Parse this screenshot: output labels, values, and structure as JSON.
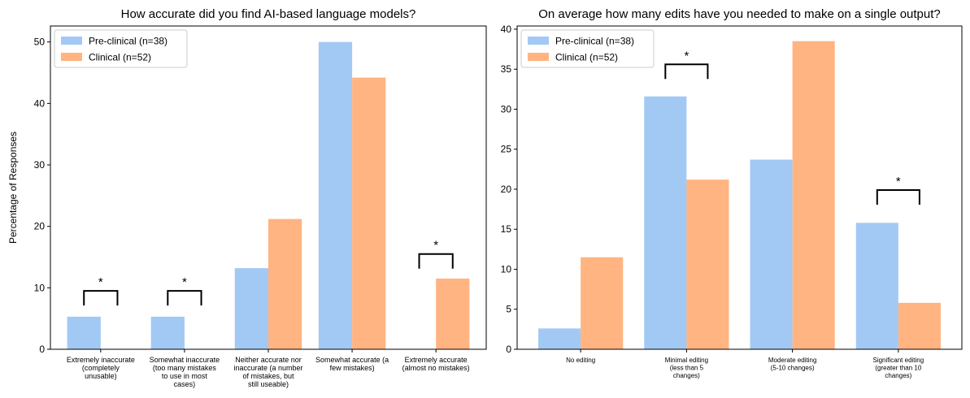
{
  "colors": {
    "preclinical": "#a1c9f4",
    "clinical": "#ffb482"
  },
  "chart_data": [
    {
      "type": "bar",
      "title": "How accurate did you find AI-based language models?",
      "ylabel": "Percentage of Responses",
      "ylim": [
        0,
        52.6
      ],
      "yticks": [
        0,
        10,
        20,
        30,
        40,
        50
      ],
      "categories": [
        "Extremely inaccurate (completely unusable)",
        "Somewhat inaccurate (too many mistakes to use in most cases)",
        "Neither accurate nor inaccurate (a number of mistakes, but still useable)",
        "Somewhat accurate (a few mistakes)",
        "Extremely accurate (almost no mistakes)"
      ],
      "category_lines": [
        [
          "Extremely inaccurate",
          "(completely",
          "unusable)"
        ],
        [
          "Somewhat inaccurate",
          "(too many mistakes",
          "to use in most",
          "cases)"
        ],
        [
          "Neither accurate nor",
          "inaccurate (a number",
          "of mistakes, but",
          "still useable)"
        ],
        [
          "Somewhat accurate (a",
          "few mistakes)"
        ],
        [
          "Extremely accurate",
          "(almost no mistakes)"
        ]
      ],
      "series": [
        {
          "name": "Pre-clinical (n=38)",
          "values": [
            5.3,
            5.3,
            13.2,
            50.0,
            0.0
          ]
        },
        {
          "name": "Clinical (n=52)",
          "values": [
            0.0,
            0.0,
            21.2,
            44.2,
            11.5
          ]
        }
      ],
      "significance": [
        {
          "category_index": 0,
          "label": "*",
          "y": 9.5
        },
        {
          "category_index": 1,
          "label": "*",
          "y": 9.5
        },
        {
          "category_index": 4,
          "label": "*",
          "y": 15.5
        }
      ],
      "legend": "top-left"
    },
    {
      "type": "bar",
      "title": "On average how many edits have you needed to make on a single output?",
      "ylabel": "",
      "ylim": [
        0,
        40.4
      ],
      "yticks": [
        0,
        5,
        10,
        15,
        20,
        25,
        30,
        35,
        40
      ],
      "categories": [
        "No editing",
        "Minimal editing (less than 5 changes)",
        "Moderate editing (5-10 changes)",
        "Significant editing (greater than 10 changes)"
      ],
      "category_lines": [
        [
          "No editing"
        ],
        [
          "Minimal editing",
          "(less than 5",
          "changes)"
        ],
        [
          "Moderate editing",
          "(5-10 changes)"
        ],
        [
          "Significant editing",
          "(greater than 10",
          "changes)"
        ]
      ],
      "series": [
        {
          "name": "Pre-clinical (n=38)",
          "values": [
            2.6,
            31.6,
            23.7,
            15.8
          ]
        },
        {
          "name": "Clinical (n=52)",
          "values": [
            11.5,
            21.2,
            38.5,
            5.8
          ]
        }
      ],
      "significance": [
        {
          "category_index": 1,
          "label": "*",
          "y": 35.6
        },
        {
          "category_index": 3,
          "label": "*",
          "y": 19.9
        }
      ],
      "legend": "top-left"
    }
  ]
}
